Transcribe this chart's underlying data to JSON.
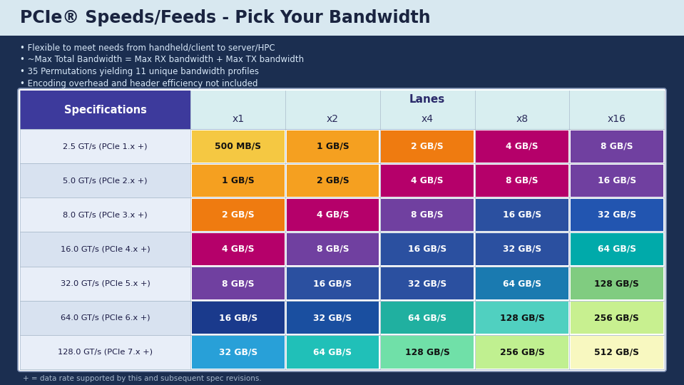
{
  "title": "PCIe® Speeds/Feeds - Pick Your Bandwidth",
  "bullets": [
    "• Flexible to meet needs from handheld/client to server/HPC",
    "• ~Max Total Bandwidth = Max RX bandwidth + Max TX bandwidth",
    "• 35 Permutations yielding 11 unique bandwidth profiles",
    "• Encoding overhead and header efficiency not included"
  ],
  "footer": "+ = data rate supported by this and subsequent spec revisions.",
  "col_headers": [
    "Specifications",
    "x1",
    "x2",
    "x4",
    "x8",
    "x16"
  ],
  "lanes_label": "Lanes",
  "rows": [
    {
      "spec": "2.5 GT/s (PCIe 1.x +)",
      "values": [
        "500 MB/S",
        "1 GB/S",
        "2 GB/S",
        "4 GB/S",
        "8 GB/S"
      ],
      "colors": [
        "#F5C842",
        "#F5A020",
        "#EF7B10",
        "#B5006A",
        "#7040A0"
      ]
    },
    {
      "spec": "5.0 GT/s (PCIe 2.x +)",
      "values": [
        "1 GB/S",
        "2 GB/S",
        "4 GB/S",
        "8 GB/S",
        "16 GB/S"
      ],
      "colors": [
        "#F5A020",
        "#F5A020",
        "#B5006A",
        "#B5006A",
        "#7040A0"
      ]
    },
    {
      "spec": "8.0 GT/s (PCIe 3.x +)",
      "values": [
        "2 GB/S",
        "4 GB/S",
        "8 GB/S",
        "16 GB/S",
        "32 GB/S"
      ],
      "colors": [
        "#EF7B10",
        "#B5006A",
        "#7040A0",
        "#2B50A0",
        "#2255B0"
      ]
    },
    {
      "spec": "16.0 GT/s (PCIe 4.x +)",
      "values": [
        "4 GB/S",
        "8 GB/S",
        "16 GB/S",
        "32 GB/S",
        "64 GB/S"
      ],
      "colors": [
        "#B5006A",
        "#7040A0",
        "#2B50A0",
        "#2B50A0",
        "#00AAAA"
      ]
    },
    {
      "spec": "32.0 GT/s (PCIe 5.x +)",
      "values": [
        "8 GB/S",
        "16 GB/S",
        "32 GB/S",
        "64 GB/S",
        "128 GB/S"
      ],
      "colors": [
        "#7040A0",
        "#2B50A0",
        "#2B50A0",
        "#1A7AB0",
        "#80CC80"
      ]
    },
    {
      "spec": "64.0 GT/s (PCIe 6.x +)",
      "values": [
        "16 GB/S",
        "32 GB/S",
        "64 GB/S",
        "128 GB/S",
        "256 GB/S"
      ],
      "colors": [
        "#1A3A8C",
        "#1A4FA0",
        "#20B0A0",
        "#50D0C0",
        "#C8F090"
      ]
    },
    {
      "spec": "128.0 GT/s (PCIe 7.x +)",
      "values": [
        "32 GB/S",
        "64 GB/S",
        "128 GB/S",
        "256 GB/S",
        "512 GB/S"
      ],
      "colors": [
        "#28A0D8",
        "#20C0B8",
        "#70E0A8",
        "#C0F090",
        "#F8F8C0"
      ]
    }
  ],
  "spec_col_color": "#3D3A9C",
  "header_bg_color": "#D8EEF0",
  "lanes_header_color": "#2A2A6A",
  "bg_color": "#1B2E50",
  "title_bg_color": "#D8E8F0",
  "bullet_bg_color": "#1B2E50",
  "table_outer_bg": "#E8F0F8",
  "spec_row_even": "#E8EEF8",
  "spec_row_odd": "#D8E2F0",
  "title_color": "#1A2440",
  "bullet_color": "#D8E8F8",
  "footer_color": "#A8B8CC",
  "divider_color": "#AABBCC"
}
